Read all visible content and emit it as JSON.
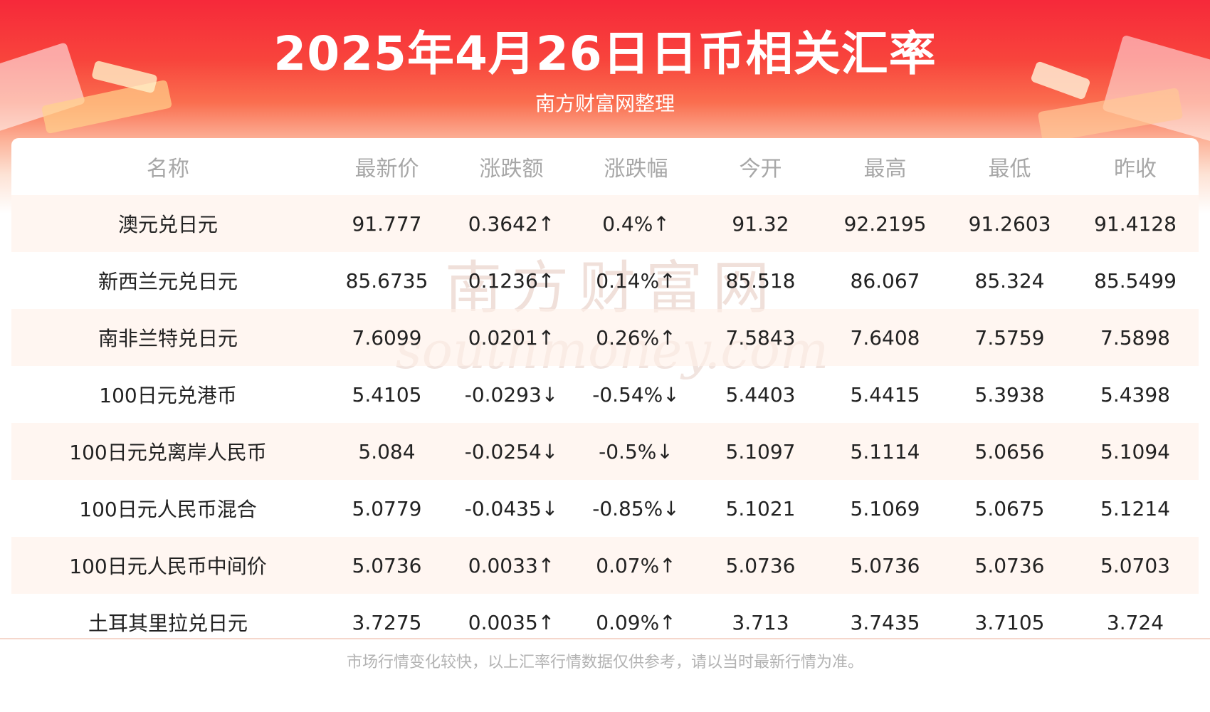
{
  "header": {
    "title": "2025年4月26日日币相关汇率",
    "subtitle": "南方财富网整理"
  },
  "watermark": {
    "cn": "南方财富网",
    "en": "southmoney.com"
  },
  "table": {
    "columns": [
      "名称",
      "最新价",
      "涨跌额",
      "涨跌幅",
      "今开",
      "最高",
      "最低",
      "昨收"
    ],
    "rows": [
      {
        "name": "澳元兑日元",
        "latest": "91.777",
        "change": "0.3642↑",
        "pct": "0.4%↑",
        "open": "91.32",
        "high": "92.2195",
        "low": "91.2603",
        "prev": "91.4128",
        "trend": "up"
      },
      {
        "name": "新西兰元兑日元",
        "latest": "85.6735",
        "change": "0.1236↑",
        "pct": "0.14%↑",
        "open": "85.518",
        "high": "86.067",
        "low": "85.324",
        "prev": "85.5499",
        "trend": "up"
      },
      {
        "name": "南非兰特兑日元",
        "latest": "7.6099",
        "change": "0.0201↑",
        "pct": "0.26%↑",
        "open": "7.5843",
        "high": "7.6408",
        "low": "7.5759",
        "prev": "7.5898",
        "trend": "up"
      },
      {
        "name": "100日元兑港币",
        "latest": "5.4105",
        "change": "-0.0293↓",
        "pct": "-0.54%↓",
        "open": "5.4403",
        "high": "5.4415",
        "low": "5.3938",
        "prev": "5.4398",
        "trend": "down"
      },
      {
        "name": "100日元兑离岸人民币",
        "latest": "5.084",
        "change": "-0.0254↓",
        "pct": "-0.5%↓",
        "open": "5.1097",
        "high": "5.1114",
        "low": "5.0656",
        "prev": "5.1094",
        "trend": "down"
      },
      {
        "name": "100日元人民币混合",
        "latest": "5.0779",
        "change": "-0.0435↓",
        "pct": "-0.85%↓",
        "open": "5.1021",
        "high": "5.1069",
        "low": "5.0675",
        "prev": "5.1214",
        "trend": "down"
      },
      {
        "name": "100日元人民币中间价",
        "latest": "5.0736",
        "change": "0.0033↑",
        "pct": "0.07%↑",
        "open": "5.0736",
        "high": "5.0736",
        "low": "5.0736",
        "prev": "5.0703",
        "trend": "up"
      },
      {
        "name": "土耳其里拉兑日元",
        "latest": "3.7275",
        "change": "0.0035↑",
        "pct": "0.09%↑",
        "open": "3.713",
        "high": "3.7435",
        "low": "3.7105",
        "prev": "3.724",
        "trend": "up"
      }
    ]
  },
  "footer": {
    "note": "市场行情变化较快，以上汇率行情数据仅供参考，请以当时最新行情为准。"
  },
  "colors": {
    "up": "#ee2b2b",
    "down": "#1d8a1d",
    "banner": "#f6293a"
  }
}
